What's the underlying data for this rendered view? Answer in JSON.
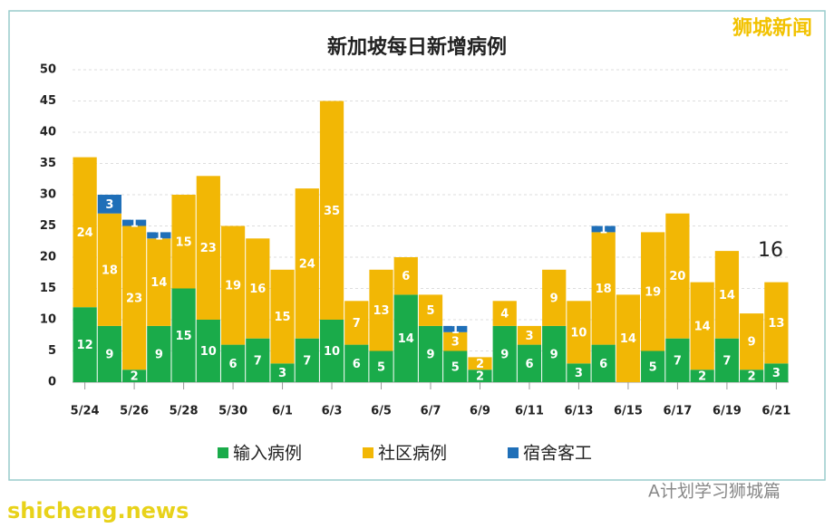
{
  "chart_data": {
    "type": "bar",
    "stacked": true,
    "title": "新加坡每日新增病例",
    "categories": [
      "5/24",
      null,
      "5/26",
      null,
      "5/28",
      null,
      "5/30",
      null,
      "6/1",
      null,
      "6/3",
      null,
      "6/5",
      null,
      "6/7",
      null,
      "6/9",
      null,
      "6/11",
      null,
      "6/13",
      null,
      "6/15",
      null,
      "6/17",
      null,
      "6/19",
      null,
      "6/21"
    ],
    "series": [
      {
        "name": "输入病例",
        "color": "#1aab4a",
        "values": [
          12,
          9,
          2,
          9,
          15,
          10,
          6,
          7,
          3,
          7,
          10,
          6,
          5,
          14,
          9,
          5,
          2,
          9,
          6,
          9,
          3,
          6,
          null,
          5,
          7,
          2,
          7,
          2,
          3
        ]
      },
      {
        "name": "社区病例",
        "color": "#f2b705",
        "values": [
          24,
          18,
          23,
          14,
          15,
          23,
          19,
          16,
          15,
          24,
          35,
          7,
          13,
          6,
          5,
          3,
          2,
          4,
          3,
          9,
          10,
          18,
          14,
          19,
          20,
          14,
          14,
          9,
          13
        ]
      },
      {
        "name": "宿舍客工",
        "color": "#1f6fb8",
        "values": [
          null,
          3,
          1,
          1,
          null,
          null,
          null,
          null,
          null,
          null,
          null,
          null,
          null,
          null,
          null,
          1,
          null,
          null,
          null,
          null,
          null,
          1,
          null,
          null,
          null,
          null,
          null,
          null,
          null
        ]
      }
    ],
    "ylim": [
      0,
      50
    ],
    "yticks": [
      0,
      5,
      10,
      15,
      20,
      25,
      30,
      35,
      40,
      45,
      50
    ],
    "grid": true,
    "annotations": [
      "16",
      "狮城新闻",
      "shicheng.news",
      "A计划学习狮城篇"
    ]
  }
}
